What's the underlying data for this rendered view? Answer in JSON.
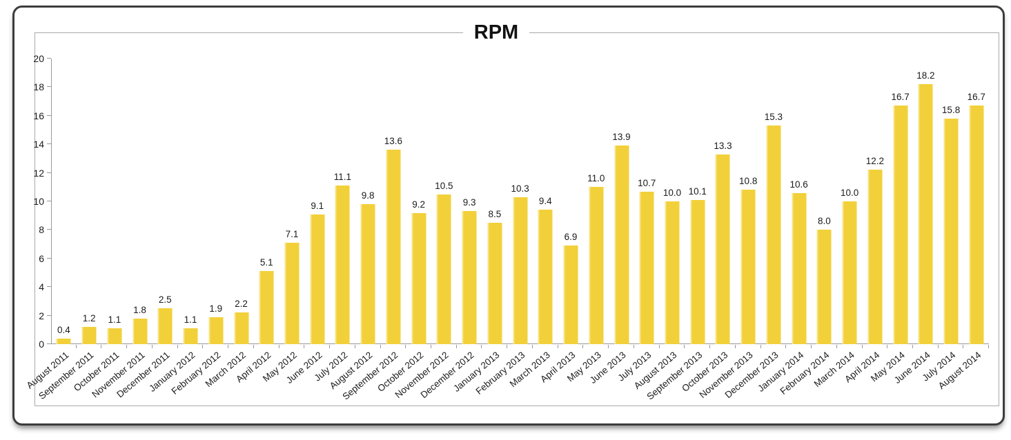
{
  "chart_data": {
    "type": "bar",
    "title": "RPM",
    "categories": [
      "August 2011",
      "September 2011",
      "October 2011",
      "November 2011",
      "December 2011",
      "January 2012",
      "February 2012",
      "March 2012",
      "April 2012",
      "May 2012",
      "June 2012",
      "July 2012",
      "August 2012",
      "September 2012",
      "October 2012",
      "November 2012",
      "December 2012",
      "January 2013",
      "February 2013",
      "March 2013",
      "April 2013",
      "May 2013",
      "June 2013",
      "July 2013",
      "August 2013",
      "September 2013",
      "October 2013",
      "November 2013",
      "December 2013",
      "January 2014",
      "February 2014",
      "March 2014",
      "April 2014",
      "May 2014",
      "June 2014",
      "July 2014",
      "August 2014"
    ],
    "values": [
      0.4,
      1.2,
      1.1,
      1.8,
      2.5,
      1.1,
      1.9,
      2.2,
      5.1,
      7.1,
      9.1,
      11.1,
      9.8,
      13.6,
      9.2,
      10.5,
      9.3,
      8.5,
      10.3,
      9.4,
      6.9,
      11.0,
      13.9,
      10.7,
      10.0,
      10.1,
      13.3,
      10.8,
      15.3,
      10.6,
      8.0,
      10.0,
      12.2,
      16.7,
      18.2,
      15.8,
      16.7
    ],
    "xlabel": "",
    "ylabel": "",
    "ylim": [
      0,
      20
    ],
    "ytick_step": 2,
    "grid": false,
    "legend": "none",
    "value_label_decimals": 1,
    "colors": {
      "bar": "#F2D03A",
      "bar_highlight": "#F8E488",
      "axis": "#999999",
      "text": "#1A1A1A"
    }
  }
}
